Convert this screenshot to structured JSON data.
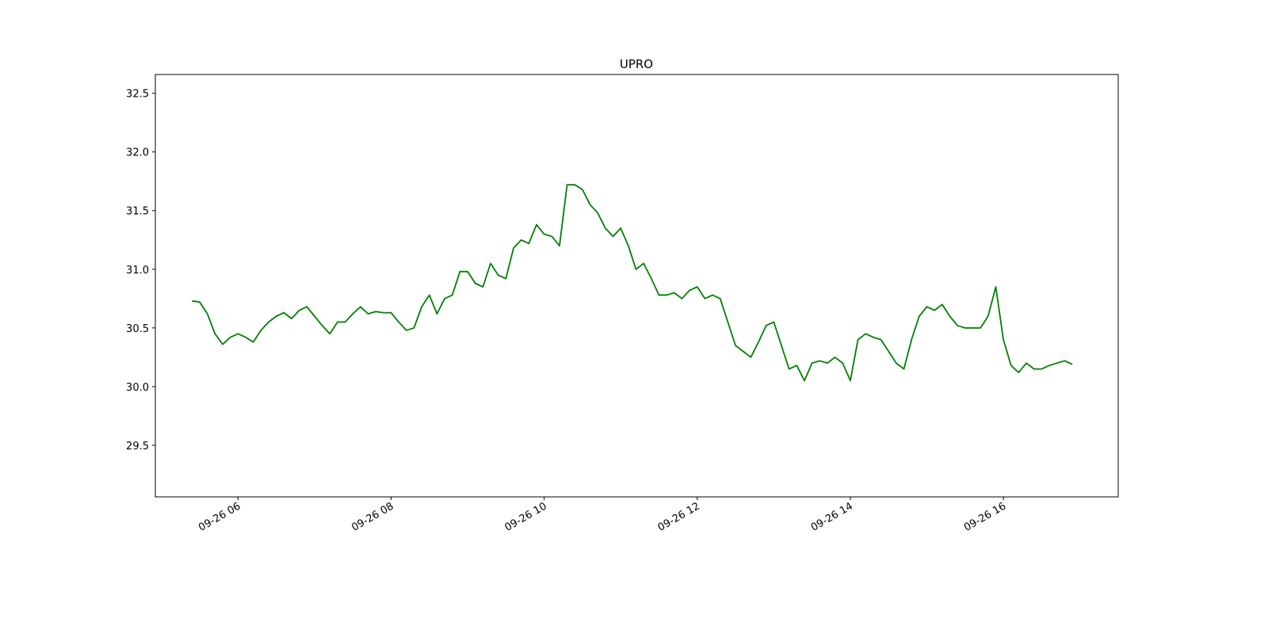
{
  "chart_data": {
    "type": "line",
    "title": "UPRO",
    "x": [
      5.4,
      5.5,
      5.6,
      5.7,
      5.8,
      5.9,
      6.0,
      6.1,
      6.2,
      6.3,
      6.4,
      6.5,
      6.6,
      6.7,
      6.8,
      6.9,
      7.0,
      7.1,
      7.2,
      7.3,
      7.4,
      7.5,
      7.6,
      7.7,
      7.8,
      7.9,
      8.0,
      8.1,
      8.2,
      8.3,
      8.4,
      8.5,
      8.6,
      8.7,
      8.8,
      8.9,
      9.0,
      9.1,
      9.2,
      9.3,
      9.4,
      9.5,
      9.6,
      9.7,
      9.8,
      9.9,
      10.0,
      10.1,
      10.2,
      10.3,
      10.4,
      10.5,
      10.6,
      10.7,
      10.8,
      10.9,
      11.0,
      11.1,
      11.2,
      11.3,
      11.4,
      11.5,
      11.6,
      11.7,
      11.8,
      11.9,
      12.0,
      12.1,
      12.2,
      12.3,
      12.4,
      12.5,
      12.6,
      12.7,
      12.8,
      12.9,
      13.0,
      13.1,
      13.2,
      13.3,
      13.4,
      13.5,
      13.6,
      13.7,
      13.8,
      13.9,
      14.0,
      14.1,
      14.2,
      14.3,
      14.4,
      14.5,
      14.6,
      14.7,
      14.8,
      14.9,
      15.0,
      15.1,
      15.2,
      15.3,
      15.4,
      15.5,
      15.6,
      15.7,
      15.8,
      15.9,
      16.0,
      16.1,
      16.2,
      16.3,
      16.4,
      16.5,
      16.6,
      16.7,
      16.8,
      16.9
    ],
    "series": [
      {
        "name": "UPRO",
        "color": "#008000",
        "values": [
          30.73,
          30.72,
          30.62,
          30.45,
          30.36,
          30.42,
          30.45,
          30.42,
          30.38,
          30.48,
          30.55,
          30.6,
          30.63,
          30.58,
          30.65,
          30.68,
          30.6,
          30.52,
          30.45,
          30.55,
          30.55,
          30.62,
          30.68,
          30.62,
          30.64,
          30.63,
          30.63,
          30.55,
          30.48,
          30.5,
          30.68,
          30.78,
          30.62,
          30.75,
          30.78,
          30.98,
          30.98,
          30.88,
          30.85,
          31.05,
          30.95,
          30.92,
          31.18,
          31.25,
          31.22,
          31.38,
          31.3,
          31.28,
          31.2,
          31.72,
          31.72,
          31.68,
          31.55,
          31.48,
          31.35,
          31.28,
          31.35,
          31.2,
          31.0,
          31.05,
          30.92,
          30.78,
          30.78,
          30.8,
          30.75,
          30.82,
          30.85,
          30.75,
          30.78,
          30.75,
          30.55,
          30.35,
          30.3,
          30.25,
          30.38,
          30.52,
          30.55,
          30.35,
          30.15,
          30.18,
          30.05,
          30.2,
          30.22,
          30.2,
          30.25,
          30.2,
          30.05,
          30.4,
          30.45,
          30.42,
          30.4,
          30.3,
          30.2,
          30.15,
          30.4,
          30.6,
          30.68,
          30.65,
          30.7,
          30.6,
          30.52,
          30.5,
          30.5,
          30.5,
          30.6,
          30.85,
          30.4,
          30.18,
          30.12,
          30.2,
          30.15,
          30.15,
          30.18,
          30.2,
          30.22,
          30.19
        ]
      }
    ],
    "xlim": [
      4.92,
      17.5
    ],
    "xticks": [
      {
        "value": 6,
        "label": "09-26 06"
      },
      {
        "value": 8,
        "label": "09-26 08"
      },
      {
        "value": 10,
        "label": "09-26 10"
      },
      {
        "value": 12,
        "label": "09-26 12"
      },
      {
        "value": 14,
        "label": "09-26 14"
      },
      {
        "value": 16,
        "label": "09-26 16"
      }
    ],
    "ylim": [
      29.06,
      32.66
    ],
    "yticks": [
      29.5,
      {
        "value": 30,
        "label": "30.0"
      },
      30.5,
      {
        "value": 31,
        "label": "31.0"
      },
      31.5,
      {
        "value": 32,
        "label": "32.0"
      },
      32.5
    ],
    "grid": false
  }
}
